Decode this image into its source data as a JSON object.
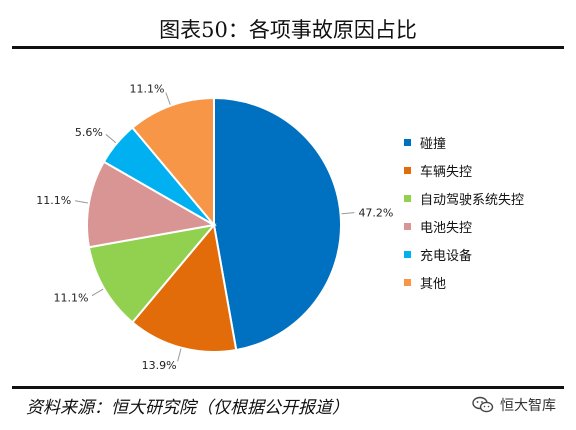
{
  "title": "图表50：各项事故原因占比",
  "source": "资料来源：恒大研究院（仅根据公开报道）",
  "watermark": "恒大智库",
  "chart_data": {
    "type": "pie",
    "categories": [
      "碰撞",
      "车辆失控",
      "自动驾驶系统失控",
      "电池失控",
      "充电设备",
      "其他"
    ],
    "values": [
      47.2,
      13.9,
      11.1,
      11.1,
      5.6,
      11.1
    ],
    "labels": [
      "47.2%",
      "13.9%",
      "11.1%",
      "11.1%",
      "5.6%",
      "11.1%"
    ],
    "colors": [
      "#0070C0",
      "#E36C0A",
      "#92D050",
      "#D99594",
      "#00B0F0",
      "#F79646"
    ],
    "legend": "right"
  }
}
